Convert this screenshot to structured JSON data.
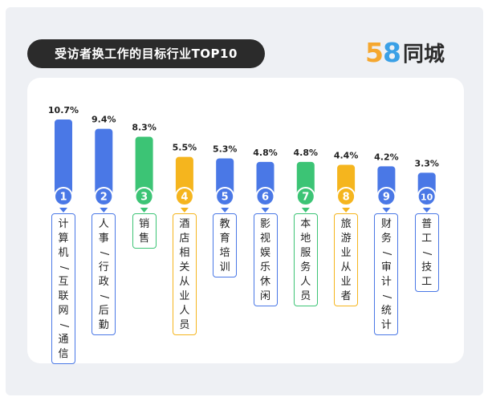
{
  "title": "受访者换工作的目标行业TOP10",
  "logo": {
    "number_5": "5",
    "number_8": "8",
    "text": "同城"
  },
  "colors": {
    "blue": "#4a78e6",
    "green": "#3cc475",
    "orange": "#f5b51e"
  },
  "chart_data": {
    "type": "bar",
    "title": "受访者换工作的目标行业TOP10",
    "ranks": [
      "1",
      "2",
      "3",
      "4",
      "5",
      "6",
      "7",
      "8",
      "9",
      "10"
    ],
    "value_labels": [
      "10.7%",
      "9.4%",
      "8.3%",
      "5.5%",
      "5.3%",
      "4.8%",
      "4.8%",
      "4.4%",
      "4.2%",
      "3.3%"
    ],
    "values": [
      10.7,
      9.4,
      8.3,
      5.5,
      5.3,
      4.8,
      4.8,
      4.4,
      4.2,
      3.3
    ],
    "categories": [
      "计算机/互联网/通信",
      "人事/行政/后勤",
      "销售",
      "酒店相关从业人员",
      "教育培训",
      "影视娱乐休闲",
      "本地服务人员",
      "旅游业从业者",
      "财务/审计/统计",
      "普工/技工"
    ],
    "bar_colors": [
      "blue",
      "blue",
      "green",
      "orange",
      "blue",
      "blue",
      "green",
      "orange",
      "blue",
      "blue"
    ],
    "ylim": [
      0,
      10.7
    ],
    "unit": "%"
  }
}
